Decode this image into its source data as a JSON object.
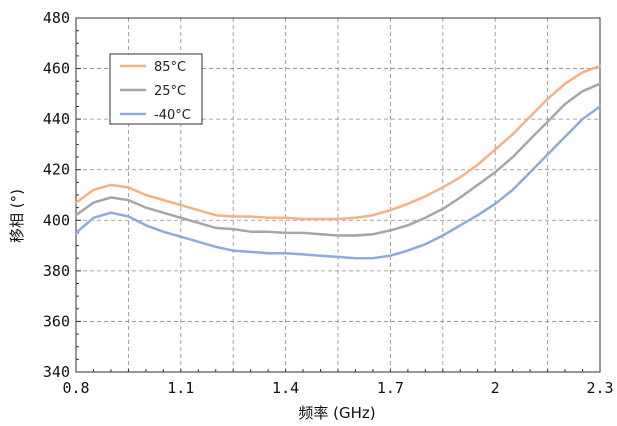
{
  "chart_data": {
    "type": "line",
    "xlabel": "频率 (GHz)",
    "ylabel": "移相 (°)",
    "x_ticks": [
      "0.8",
      "1.1",
      "1.4",
      "1.7",
      "2",
      "2.3"
    ],
    "y_ticks": [
      "340",
      "360",
      "380",
      "400",
      "420",
      "440",
      "460",
      "480"
    ],
    "xlim": [
      0.8,
      2.3
    ],
    "ylim": [
      340,
      480
    ],
    "grid": true,
    "legend_position": "top-left",
    "x": [
      0.8,
      0.85,
      0.9,
      0.95,
      1.0,
      1.05,
      1.1,
      1.15,
      1.2,
      1.25,
      1.3,
      1.35,
      1.4,
      1.45,
      1.5,
      1.55,
      1.6,
      1.65,
      1.7,
      1.75,
      1.8,
      1.85,
      1.9,
      1.95,
      2.0,
      2.05,
      2.1,
      2.15,
      2.2,
      2.25,
      2.3
    ],
    "series": [
      {
        "name": "85°C",
        "color": "#F4B183",
        "values": [
          407,
          412,
          414,
          413,
          410,
          408,
          406,
          404,
          402,
          401.5,
          401.5,
          401,
          401,
          400.5,
          400.5,
          400.5,
          401,
          402,
          404,
          406.5,
          409.5,
          413,
          417,
          422,
          428,
          434,
          441,
          448,
          454,
          458.5,
          461
        ]
      },
      {
        "name": "25°C",
        "color": "#A6A6A6",
        "values": [
          402,
          407,
          409,
          408,
          405,
          403,
          401,
          399,
          397,
          396.5,
          395.5,
          395.5,
          395,
          395,
          394.5,
          394,
          394,
          394.5,
          396,
          398,
          401,
          404.5,
          409,
          414,
          419,
          425,
          432,
          439,
          446,
          451,
          454
        ]
      },
      {
        "name": "-40°C",
        "color": "#8FAADC",
        "values": [
          395,
          401,
          403,
          401.5,
          398,
          395.5,
          393.5,
          391.5,
          389.5,
          388,
          387.5,
          387,
          387,
          386.5,
          386,
          385.5,
          385,
          385,
          386,
          388,
          390.5,
          394,
          398,
          402,
          406.5,
          412,
          419,
          426,
          433,
          440,
          445
        ]
      }
    ]
  }
}
